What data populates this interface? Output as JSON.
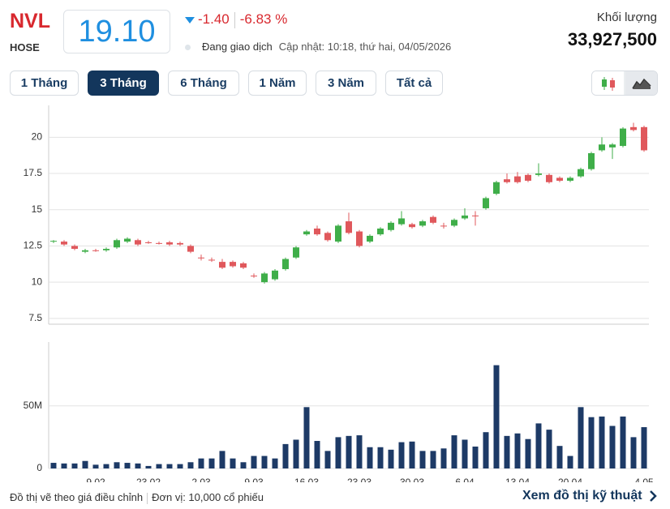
{
  "header": {
    "symbol": "NVL",
    "exchange": "HOSE",
    "price": "19.10",
    "change": "-1.40",
    "change_percent": "-6.83 %",
    "status": "Đang giao dịch",
    "updated": "Cập nhật: 10:18, thứ hai, 04/05/2026",
    "volume_label": "Khối lượng",
    "volume": "33,927,500"
  },
  "tabs": [
    "1 Tháng",
    "3 Tháng",
    "6 Tháng",
    "1 Năm",
    "3 Năm",
    "Tất cả"
  ],
  "active_tab": 1,
  "footer": {
    "note": "Đồ thị vẽ theo giá điều chỉnh",
    "unit": "Đơn vị: 10,000 cổ phiếu",
    "link": "Xem đồ thị kỹ thuật"
  },
  "chart_data": [
    {
      "type": "candlestick",
      "up_color": "#3fae49",
      "down_color": "#e0585c",
      "grid": true,
      "ylim": [
        7.1,
        22.2
      ],
      "yticks": [
        7.5,
        10,
        12.5,
        15,
        17.5,
        20
      ],
      "open": [
        12.8,
        12.8,
        12.5,
        12.1,
        12.2,
        12.2,
        12.4,
        12.8,
        12.9,
        12.75,
        12.7,
        12.75,
        12.7,
        12.5,
        11.7,
        11.55,
        11.4,
        11.4,
        11.3,
        10.45,
        10.0,
        10.2,
        10.9,
        11.7,
        13.3,
        13.7,
        13.4,
        12.8,
        14.2,
        13.5,
        12.8,
        13.3,
        13.6,
        14.0,
        14.0,
        13.9,
        14.5,
        13.9,
        13.9,
        14.4,
        14.6,
        15.1,
        16.1,
        17.1,
        17.3,
        17.4,
        17.4,
        17.4,
        17.2,
        17.0,
        17.3,
        17.8,
        19.1,
        19.3,
        19.4,
        20.7,
        20.7
      ],
      "high": [
        12.9,
        12.9,
        12.6,
        12.3,
        12.3,
        12.4,
        13.0,
        13.1,
        13.0,
        12.85,
        12.8,
        12.85,
        12.8,
        12.6,
        11.9,
        11.7,
        11.6,
        11.5,
        11.4,
        10.6,
        10.7,
        10.9,
        11.7,
        12.5,
        13.6,
        13.9,
        13.5,
        14.0,
        14.8,
        13.6,
        13.3,
        13.8,
        14.2,
        14.9,
        14.1,
        14.3,
        14.6,
        14.1,
        14.4,
        15.1,
        14.9,
        15.9,
        17.0,
        17.5,
        17.6,
        17.5,
        18.2,
        17.5,
        17.3,
        17.3,
        17.9,
        19.0,
        20.0,
        19.6,
        20.7,
        21.0,
        20.8
      ],
      "low": [
        12.7,
        12.5,
        12.2,
        12.0,
        12.1,
        12.1,
        12.3,
        12.7,
        12.5,
        12.65,
        12.6,
        12.5,
        12.5,
        12.0,
        11.5,
        11.4,
        10.9,
        11.0,
        10.9,
        10.3,
        9.9,
        10.1,
        10.8,
        11.6,
        13.2,
        13.2,
        12.8,
        12.7,
        13.3,
        12.4,
        12.7,
        13.2,
        13.5,
        13.9,
        13.7,
        13.8,
        14.0,
        13.7,
        13.8,
        14.3,
        13.9,
        15.0,
        16.0,
        16.8,
        16.8,
        16.9,
        17.3,
        16.8,
        16.9,
        16.9,
        17.2,
        17.7,
        19.0,
        18.5,
        19.3,
        20.4,
        19.0
      ],
      "close": [
        12.85,
        12.6,
        12.3,
        12.2,
        12.15,
        12.3,
        12.9,
        13.0,
        12.6,
        12.7,
        12.65,
        12.6,
        12.6,
        12.1,
        11.65,
        11.5,
        11.0,
        11.1,
        11.0,
        10.4,
        10.6,
        10.8,
        11.6,
        12.4,
        13.5,
        13.3,
        12.9,
        13.9,
        13.4,
        12.5,
        13.2,
        13.7,
        14.1,
        14.4,
        13.8,
        14.2,
        14.1,
        13.85,
        14.3,
        14.6,
        14.55,
        15.8,
        16.9,
        16.9,
        16.9,
        17.0,
        17.5,
        16.9,
        17.0,
        17.2,
        17.8,
        18.9,
        19.5,
        19.5,
        20.6,
        20.5,
        19.1
      ]
    },
    {
      "type": "bar",
      "color": "#1d3a66",
      "grid": true,
      "ylim": [
        0,
        101
      ],
      "yticks": [
        0,
        {
          "value": 50,
          "label": "50M"
        }
      ],
      "categories": [
        null,
        null,
        null,
        null,
        "9.02",
        null,
        null,
        null,
        null,
        "23.02",
        null,
        null,
        null,
        null,
        "2.03",
        null,
        null,
        null,
        null,
        "9.03",
        null,
        null,
        null,
        null,
        "16.03",
        null,
        null,
        null,
        null,
        "23.03",
        null,
        null,
        null,
        null,
        "30.03",
        null,
        null,
        null,
        null,
        "6.04",
        null,
        null,
        null,
        null,
        "13.04",
        null,
        null,
        null,
        null,
        "20.04",
        null,
        null,
        null,
        null,
        null,
        null,
        "4.05"
      ],
      "values": [
        4.5,
        4,
        4,
        6,
        3,
        3.5,
        5,
        4.5,
        4,
        2,
        3.5,
        3.5,
        3.5,
        5,
        8,
        8,
        14,
        8,
        5,
        10,
        10,
        8,
        19.5,
        23,
        49,
        22,
        14,
        25,
        26,
        26.5,
        17,
        17,
        15,
        21,
        21.5,
        14,
        14,
        16,
        26.5,
        23,
        17.5,
        29,
        82.5,
        26,
        28,
        23.5,
        36,
        31,
        18,
        10,
        49,
        41,
        41.5,
        34,
        41.5,
        25,
        33
      ]
    }
  ]
}
